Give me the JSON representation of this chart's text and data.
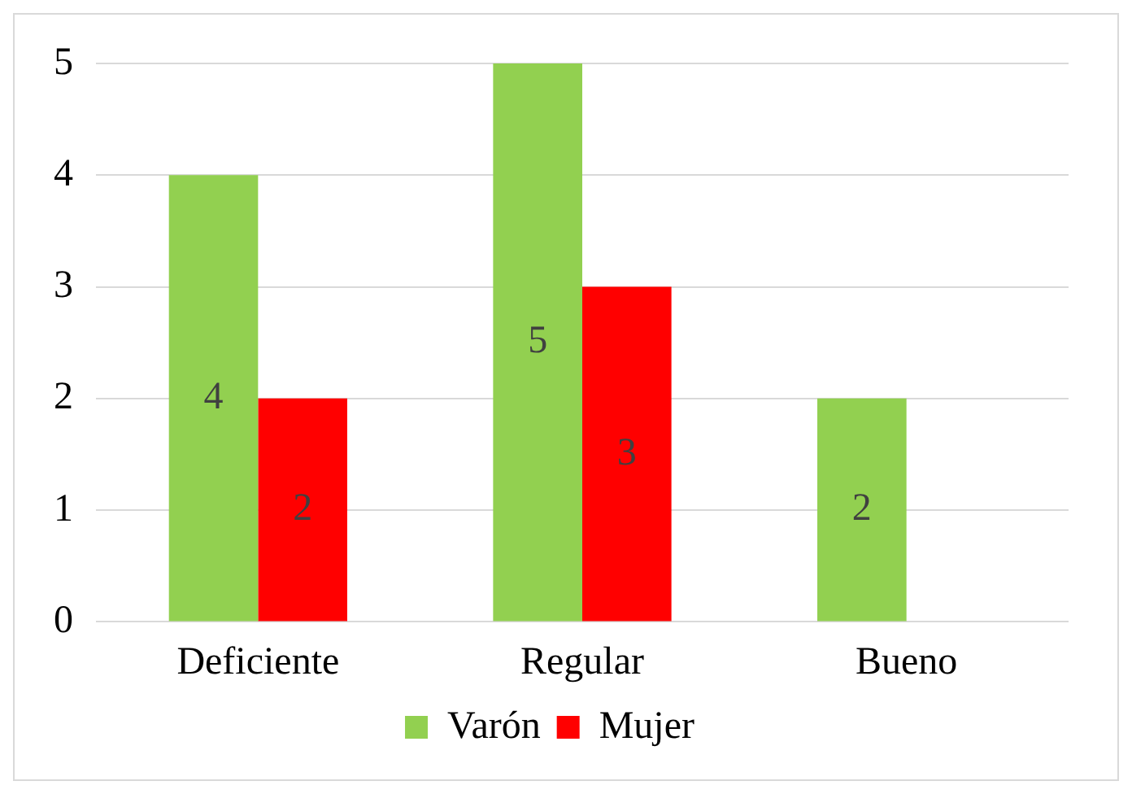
{
  "chart_data": {
    "type": "bar",
    "categories": [
      "Deficiente",
      "Regular",
      "Bueno"
    ],
    "series": [
      {
        "name": "Varón",
        "color": "#92d050",
        "values": [
          4,
          5,
          2
        ]
      },
      {
        "name": "Mujer",
        "color": "#ff0000",
        "values": [
          2,
          3,
          null
        ]
      }
    ],
    "ylim": [
      0,
      5
    ],
    "yticks": [
      0,
      1,
      2,
      3,
      4,
      5
    ],
    "grid": "y",
    "legend": "bottom",
    "data_labels": true
  }
}
